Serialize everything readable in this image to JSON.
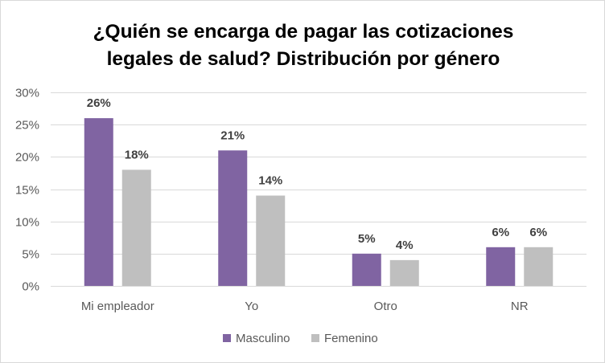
{
  "chart_data": {
    "type": "bar",
    "title_lines": [
      "¿Quién se encarga de pagar las cotizaciones",
      "legales de salud? Distribución por género"
    ],
    "categories": [
      "Mi empleador",
      "Yo",
      "Otro",
      "NR"
    ],
    "series": [
      {
        "name": "Masculino",
        "color": "#8064a2",
        "values": [
          0.26,
          0.21,
          0.05,
          0.06
        ],
        "labels": [
          "26%",
          "21%",
          "5%",
          "6%"
        ]
      },
      {
        "name": "Femenino",
        "color": "#bfbfbf",
        "values": [
          0.18,
          0.14,
          0.04,
          0.06
        ],
        "labels": [
          "18%",
          "14%",
          "4%",
          "6%"
        ]
      }
    ],
    "y_ticks": [
      0,
      0.05,
      0.1,
      0.15,
      0.2,
      0.25,
      0.3
    ],
    "y_tick_labels": [
      "0%",
      "5%",
      "10%",
      "15%",
      "20%",
      "25%",
      "30%"
    ],
    "ylim": [
      0,
      0.3
    ],
    "grid": true,
    "gridline_color": "#d9d9d9",
    "legend_position": "bottom"
  }
}
